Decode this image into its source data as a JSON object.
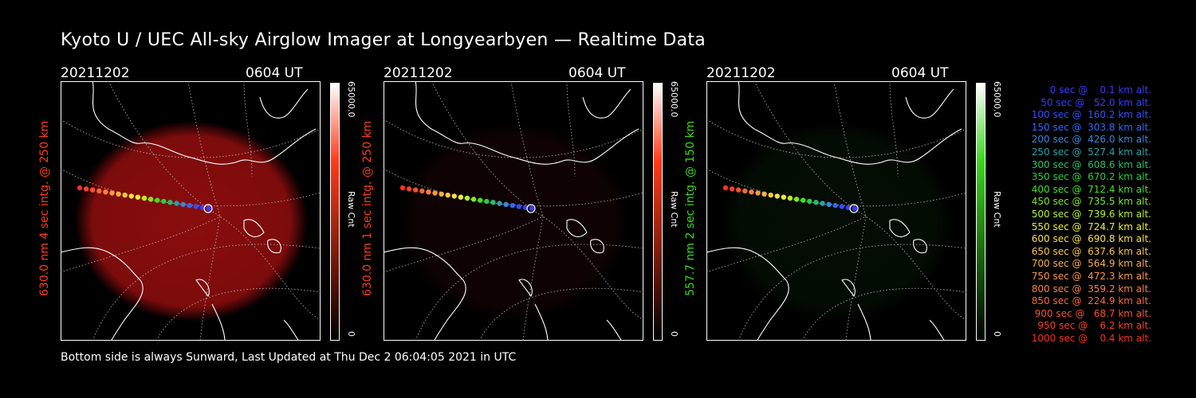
{
  "title": "Kyoto U / UEC All-sky Airglow Imager at Longyearbyen — Realtime Data",
  "footer": "Bottom side is always Sunward, Last Updated at Thu Dec  2 06:04:05 2021 in UTC",
  "panels": [
    {
      "date": "20211202",
      "time": "0604 UT",
      "ylabel": "630.0 nm 4 sec intg. @ 250 km",
      "color": "#ff3b1a",
      "cbar_max": "65000.0",
      "cbar_label": "Raw Cnt",
      "cbar_min": "0",
      "glow": "#8a0d0d",
      "glow_level": 1.0
    },
    {
      "date": "20211202",
      "time": "0604 UT",
      "ylabel": "630.0 nm 1 sec intg. @ 250 km",
      "color": "#ff3b1a",
      "cbar_max": "65000.0",
      "cbar_label": "Raw Cnt",
      "cbar_min": "0",
      "glow": "#2c0606",
      "glow_level": 0.35
    },
    {
      "date": "20211202",
      "time": "0604 UT",
      "ylabel": "557.7 nm 2 sec intg. @ 150 km",
      "color": "#39d81c",
      "cbar_max": "65000.0",
      "cbar_label": "Raw Cnt",
      "cbar_min": "0",
      "glow": "#0c2a0a",
      "glow_level": 0.3
    }
  ],
  "legend": [
    {
      "text": "   0 sec @    0.1 km alt.",
      "color": "#3a3aff"
    },
    {
      "text": "  50 sec @   52.0 km alt.",
      "color": "#3a3aff"
    },
    {
      "text": " 100 sec @  160.2 km alt.",
      "color": "#3050ff"
    },
    {
      "text": " 150 sec @  303.8 km alt.",
      "color": "#3068ff"
    },
    {
      "text": " 200 sec @  426.0 km alt.",
      "color": "#3a86d8"
    },
    {
      "text": " 250 sec @  527.4 km alt.",
      "color": "#2aa0a8"
    },
    {
      "text": " 300 sec @  608.6 km alt.",
      "color": "#22c070"
    },
    {
      "text": " 350 sec @  670.2 km alt.",
      "color": "#22d040"
    },
    {
      "text": " 400 sec @  712.4 km alt.",
      "color": "#40e020"
    },
    {
      "text": " 450 sec @  735.5 km alt.",
      "color": "#80e820"
    },
    {
      "text": " 500 sec @  739.6 km alt.",
      "color": "#b8f020"
    },
    {
      "text": " 550 sec @  724.7 km alt.",
      "color": "#e8f030"
    },
    {
      "text": " 600 sec @  690.8 km alt.",
      "color": "#f8e040"
    },
    {
      "text": " 650 sec @  637.6 km alt.",
      "color": "#f8c840"
    },
    {
      "text": " 700 sec @  564.9 km alt.",
      "color": "#f8b040"
    },
    {
      "text": " 750 sec @  472.3 km alt.",
      "color": "#f89840"
    },
    {
      "text": " 800 sec @  359.2 km alt.",
      "color": "#f88040"
    },
    {
      "text": " 850 sec @  224.9 km alt.",
      "color": "#f86838"
    },
    {
      "text": " 900 sec @   68.7 km alt.",
      "color": "#f85030"
    },
    {
      "text": " 950 sec @    6.2 km alt.",
      "color": "#f84028"
    },
    {
      "text": "1000 sec @    0.4 km alt.",
      "color": "#f83020"
    }
  ]
}
